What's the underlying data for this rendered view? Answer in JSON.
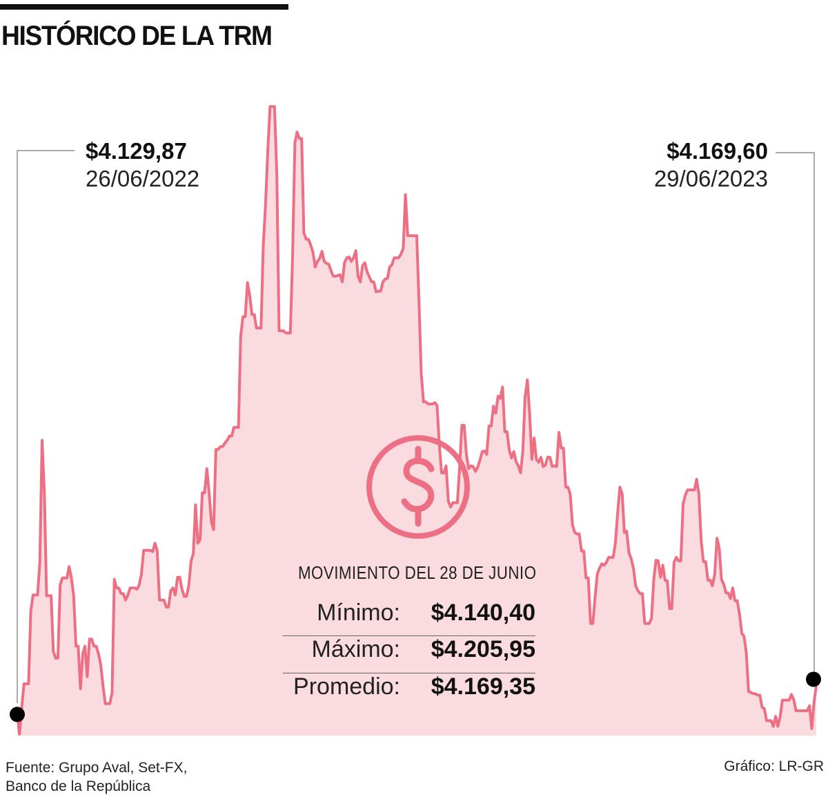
{
  "header": {
    "title": "HISTÓRICO DE LA TRM"
  },
  "start_point": {
    "value": "$4.129,87",
    "date": "26/06/2022"
  },
  "end_point": {
    "value": "$4.169,60",
    "date": "29/06/2023"
  },
  "summary": {
    "title": "MOVIMIENTO DEL 28 DE JUNIO",
    "rows": [
      {
        "label": "Mínimo:",
        "value": "$4.140,40"
      },
      {
        "label": "Máximo:",
        "value": "$4.205,95"
      },
      {
        "label": "Promedio:",
        "value": "$4.169,35"
      }
    ]
  },
  "footer": {
    "source_line1": "Fuente: Grupo Aval, Set-FX,",
    "source_line2": "Banco de la República",
    "credit": "Gráfico: LR-GR"
  },
  "colors": {
    "line": "#ec6f83",
    "fill": "#f9dbe0",
    "marker": "#000000",
    "text": "#111111"
  },
  "icons": {
    "currency": "dollar-circle-icon"
  },
  "chart_data": {
    "type": "area",
    "title": "HISTÓRICO DE LA TRM",
    "xlabel": "",
    "ylabel": "",
    "grid": false,
    "legend": "none",
    "x_start": "26/06/2022",
    "x_end": "29/06/2023",
    "ylim": [
      4100,
      5100
    ],
    "series": [
      {
        "values": [
          4129.87,
          4102,
          4140,
          4173,
          4173,
          4173,
          4275,
          4298,
          4298,
          4298,
          4343,
          4516,
          4442,
          4297,
          4297,
          4297,
          4219,
          4209,
          4209,
          4312,
          4322,
          4322,
          4322,
          4338,
          4322,
          4297,
          4226,
          4226,
          4166,
          4215,
          4226,
          4183,
          4236,
          4236,
          4226,
          4226,
          4215,
          4200,
          4170,
          4145,
          4145,
          4145,
          4160,
          4320,
          4308,
          4308,
          4300,
          4300,
          4291,
          4298,
          4308,
          4308,
          4308,
          4306,
          4312,
          4327,
          4361,
          4361,
          4361,
          4361,
          4359,
          4371,
          4361,
          4291,
          4291,
          4291,
          4281,
          4281,
          4304,
          4308,
          4298,
          4323,
          4323,
          4306,
          4296,
          4296,
          4311,
          4346,
          4356,
          4425,
          4371,
          4376,
          4442,
          4442,
          4476,
          4442,
          4401,
          4390,
          4503,
          4503,
          4507,
          4507,
          4512,
          4516,
          4522,
          4522,
          4534,
          4534,
          4534,
          4662,
          4690,
          4690,
          4738,
          4720,
          4693,
          4693,
          4674,
          4674,
          4674,
          4791,
          4847,
          4924,
          4986,
          4986,
          4986,
          4890,
          4670,
          4670,
          4670,
          4667,
          4667,
          4667,
          4778,
          4935,
          4950,
          4941,
          4941,
          4808,
          4799,
          4799,
          4791,
          4781,
          4760,
          4768,
          4772,
          4782,
          4768,
          4765,
          4764,
          4755,
          4747,
          4747,
          4748,
          4749,
          4739,
          4766,
          4773,
          4774,
          4768,
          4773,
          4783,
          4747,
          4739,
          4762,
          4766,
          4753,
          4746,
          4739,
          4739,
          4725,
          4726,
          4726,
          4739,
          4743,
          4744,
          4760,
          4763,
          4773,
          4773,
          4773,
          4778,
          4786,
          4862,
          4804,
          4804,
          4804,
          4804,
          4804,
          4710,
          4610,
          4570,
          4570,
          4567,
          4567,
          4567,
          4569,
          4565,
          4510,
          4470,
          4470,
          4480,
          4430,
          4422,
          4428,
          4428,
          4428,
          4480,
          4537,
          4537,
          4496,
          4476,
          4480,
          4479,
          4472,
          4478,
          4488,
          4500,
          4501,
          4496,
          4536,
          4536,
          4564,
          4554,
          4578,
          4575,
          4591,
          4528,
          4528,
          4502,
          4491,
          4500,
          4486,
          4480,
          4470,
          4500,
          4577,
          4601,
          4553,
          4489,
          4519,
          4489,
          4485,
          4492,
          4479,
          4481,
          4492,
          4492,
          4479,
          4480,
          4479,
          4527,
          4505,
          4505,
          4450,
          4450,
          4440,
          4397,
          4386,
          4384,
          4384,
          4360,
          4360,
          4322,
          4322,
          4258,
          4258,
          4294,
          4328,
          4336,
          4342,
          4340,
          4344,
          4351,
          4351,
          4351,
          4371,
          4413,
          4450,
          4441,
          4386,
          4388,
          4358,
          4349,
          4336,
          4311,
          4304,
          4300,
          4300,
          4258,
          4258,
          4258,
          4265,
          4320,
          4347,
          4346,
          4323,
          4340,
          4319,
          4318,
          4279,
          4279,
          4344,
          4351,
          4346,
          4346,
          4426,
          4439,
          4446,
          4446,
          4446,
          4446,
          4461,
          4440,
          4375,
          4345,
          4345,
          4319,
          4319,
          4311,
          4327,
          4378,
          4365,
          4320,
          4313,
          4301,
          4301,
          4293,
          4308,
          4290,
          4290,
          4271,
          4244,
          4240,
          4217,
          4162,
          4161,
          4159,
          4159,
          4157,
          4157,
          4140,
          4138,
          4121,
          4121,
          4121,
          4113,
          4127,
          4113,
          4127,
          4150,
          4150,
          4150,
          4150,
          4158,
          4151,
          4135,
          4135,
          4135,
          4135,
          4135,
          4135,
          4142,
          4110,
          4147,
          4169.6
        ]
      }
    ]
  }
}
